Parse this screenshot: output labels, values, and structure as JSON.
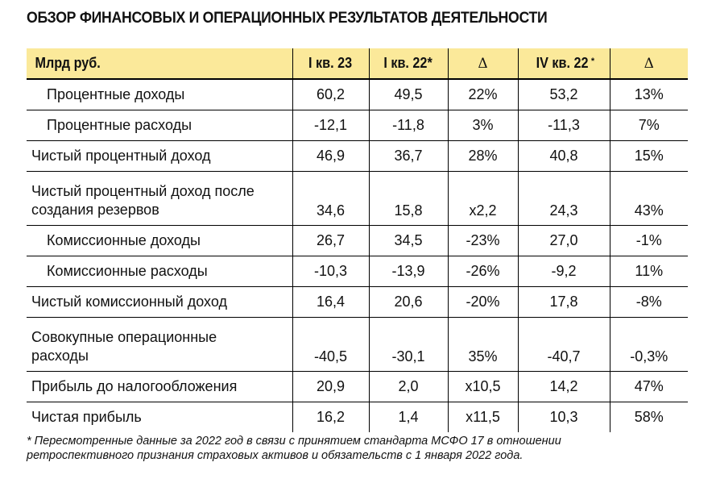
{
  "title": "ОБЗОР ФИНАНСОВЫХ И ОПЕРАЦИОННЫХ РЕЗУЛЬТАТОВ ДЕЯТЕЛЬНОСТИ",
  "table": {
    "header": {
      "label": "Млрд руб.",
      "col1": "I кв. 23",
      "col2": "I кв. 22*",
      "col3": "Δ",
      "col4": "IV кв. 22",
      "col4_sup": "*",
      "col5": "Δ"
    },
    "header_bg_color": "#fbe99a",
    "rows": [
      {
        "label": "Процентные доходы",
        "indent": true,
        "q1_23": "60,2",
        "q1_22": "49,5",
        "delta_yoy": "22%",
        "q4_22": "53,2",
        "delta_qoq": "13%"
      },
      {
        "label": "Процентные расходы",
        "indent": true,
        "q1_23": "-12,1",
        "q1_22": "-11,8",
        "delta_yoy": "3%",
        "q4_22": "-11,3",
        "delta_qoq": "7%"
      },
      {
        "label": "Чистый процентный доход",
        "indent": false,
        "q1_23": "46,9",
        "q1_22": "36,7",
        "delta_yoy": "28%",
        "q4_22": "40,8",
        "delta_qoq": "15%"
      },
      {
        "label": "Чистый процентный доход после создания резервов",
        "indent": false,
        "q1_23": "34,6",
        "q1_22": "15,8",
        "delta_yoy": "x2,2",
        "q4_22": "24,3",
        "delta_qoq": "43%"
      },
      {
        "label": "Комиссионные доходы",
        "indent": true,
        "q1_23": "26,7",
        "q1_22": "34,5",
        "delta_yoy": "-23%",
        "q4_22": "27,0",
        "delta_qoq": "-1%"
      },
      {
        "label": "Комиссионные расходы",
        "indent": true,
        "q1_23": "-10,3",
        "q1_22": "-13,9",
        "delta_yoy": "-26%",
        "q4_22": "-9,2",
        "delta_qoq": "11%"
      },
      {
        "label": "Чистый комиссионный доход",
        "indent": false,
        "q1_23": "16,4",
        "q1_22": "20,6",
        "delta_yoy": "-20%",
        "q4_22": "17,8",
        "delta_qoq": "-8%"
      },
      {
        "label": "Совокупные операционные расходы",
        "indent": false,
        "q1_23": "-40,5",
        "q1_22": "-30,1",
        "delta_yoy": "35%",
        "q4_22": "-40,7",
        "delta_qoq": "-0,3%"
      },
      {
        "label": "Прибыль до налогообложения",
        "indent": false,
        "q1_23": "20,9",
        "q1_22": "2,0",
        "delta_yoy": "x10,5",
        "q4_22": "14,2",
        "delta_qoq": "47%"
      },
      {
        "label": "Чистая прибыль",
        "indent": false,
        "q1_23": "16,2",
        "q1_22": "1,4",
        "delta_yoy": "x11,5",
        "q4_22": "10,3",
        "delta_qoq": "58%"
      }
    ]
  },
  "footnote": {
    "line1": "* Пересмотренные данные за 2022 год в связи с принятием стандарта МСФО 17 в отношении",
    "line2": "ретроспективного признания страховых активов и обязательств с 1 января 2022 года."
  }
}
